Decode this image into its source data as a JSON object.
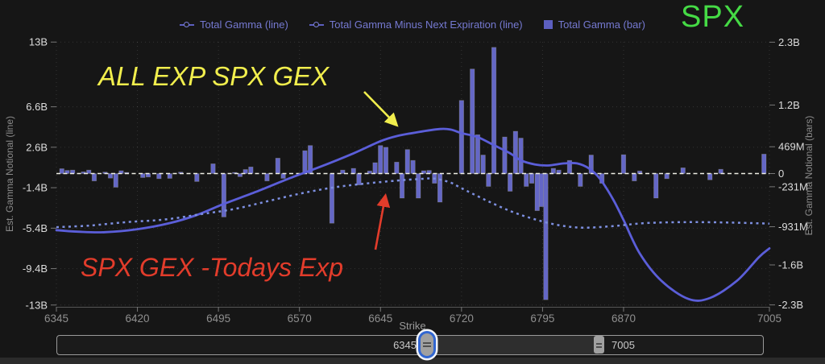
{
  "title": "SPX",
  "legend": [
    {
      "label": "Total Gamma (line)",
      "marker": "line-dot-icon"
    },
    {
      "label": "Total Gamma Minus Next Expiration (line)",
      "marker": "line-dot-icon"
    },
    {
      "label": "Total Gamma (bar)",
      "marker": "square-icon"
    }
  ],
  "annotations": {
    "all_exp": "ALL EXP SPX GEX",
    "todays_exp": "SPX GEX -Todays Exp"
  },
  "slider": {
    "min_label": "6345",
    "max_label": "7005"
  },
  "colors": {
    "background": "#161616",
    "bar_fill": "#6467c6",
    "bar_stroke": "#b0b08c",
    "line_solid": "#5b5ed9",
    "line_dotted": "#7d8fe0",
    "zero_line": "#eeeee4",
    "grid": "#ffffff",
    "title_green": "#45da45",
    "annotation_yellow": "#f1ee4d",
    "annotation_red": "#e23c2b",
    "legend_text": "#7579d1",
    "axis_label": "#dcdcdc",
    "x_label": "#8f8f8f",
    "axis_title": "#8a8a8a"
  },
  "chart_data": {
    "type": "mixed-bar-line",
    "xlabel": "Strike",
    "xlim": [
      6345,
      7005
    ],
    "x_ticks": [
      6345,
      6420,
      6495,
      6570,
      6645,
      6720,
      6795,
      6870,
      7005
    ],
    "left_axis": {
      "title": "Est. Gamma Notional (line)",
      "unit": "B",
      "ylim": [
        -13.2,
        13.0
      ],
      "tick_values_B": [
        13,
        6.6,
        2.6,
        -1.4,
        -5.4,
        -9.4,
        -13
      ],
      "tick_labels": [
        "13B",
        "6.6B",
        "2.6B",
        "-1.4B",
        "-5.4B",
        "-9.4B",
        "-13B"
      ]
    },
    "right_axis": {
      "title": "Est. Gamma Notional (bars)",
      "unit": "M",
      "ylim_M": [
        -2330,
        2300
      ],
      "tick_values_M": [
        2300,
        1200,
        469,
        0,
        -231,
        -931,
        -1600,
        -2300
      ],
      "tick_labels": [
        "2.3B",
        "1.2B",
        "469M",
        "0",
        "-231M",
        "-931M",
        "-1.6B",
        "-2.3B"
      ]
    },
    "bars_M": [
      [
        6350,
        85
      ],
      [
        6355,
        55
      ],
      [
        6360,
        60
      ],
      [
        6370,
        30
      ],
      [
        6375,
        60
      ],
      [
        6380,
        -130
      ],
      [
        6390,
        25
      ],
      [
        6395,
        -80
      ],
      [
        6400,
        -240
      ],
      [
        6405,
        50
      ],
      [
        6410,
        20
      ],
      [
        6425,
        -70
      ],
      [
        6430,
        -60
      ],
      [
        6440,
        -90
      ],
      [
        6450,
        -85
      ],
      [
        6460,
        25
      ],
      [
        6475,
        -140
      ],
      [
        6490,
        170
      ],
      [
        6500,
        -760
      ],
      [
        6510,
        20
      ],
      [
        6515,
        -55
      ],
      [
        6520,
        70
      ],
      [
        6525,
        115
      ],
      [
        6540,
        -130
      ],
      [
        6550,
        270
      ],
      [
        6555,
        -85
      ],
      [
        6575,
        400
      ],
      [
        6580,
        490
      ],
      [
        6600,
        -870
      ],
      [
        6610,
        60
      ],
      [
        6620,
        90
      ],
      [
        6625,
        -200
      ],
      [
        6635,
        45
      ],
      [
        6640,
        190
      ],
      [
        6645,
        490
      ],
      [
        6650,
        460
      ],
      [
        6660,
        200
      ],
      [
        6665,
        -430
      ],
      [
        6670,
        420
      ],
      [
        6675,
        230
      ],
      [
        6680,
        -430
      ],
      [
        6685,
        50
      ],
      [
        6690,
        55
      ],
      [
        6695,
        -170
      ],
      [
        6700,
        -500
      ],
      [
        6720,
        1280
      ],
      [
        6730,
        1830
      ],
      [
        6735,
        680
      ],
      [
        6740,
        325
      ],
      [
        6745,
        -225
      ],
      [
        6750,
        2210
      ],
      [
        6760,
        640
      ],
      [
        6765,
        -310
      ],
      [
        6770,
        740
      ],
      [
        6775,
        620
      ],
      [
        6780,
        -225
      ],
      [
        6785,
        -170
      ],
      [
        6790,
        -650
      ],
      [
        6794,
        -580
      ],
      [
        6798,
        -2210
      ],
      [
        6805,
        90
      ],
      [
        6810,
        60
      ],
      [
        6820,
        230
      ],
      [
        6830,
        -225
      ],
      [
        6840,
        325
      ],
      [
        6850,
        -170
      ],
      [
        6870,
        330
      ],
      [
        6880,
        -130
      ],
      [
        6885,
        45
      ],
      [
        6900,
        -430
      ],
      [
        6910,
        -90
      ],
      [
        6925,
        100
      ],
      [
        6950,
        -110
      ],
      [
        6960,
        75
      ],
      [
        7000,
        340
      ]
    ],
    "series": [
      {
        "name": "Total Gamma (line)",
        "style": "solid",
        "points_B": [
          [
            6345,
            -5.6
          ],
          [
            6365,
            -5.75
          ],
          [
            6390,
            -5.8
          ],
          [
            6420,
            -5.5
          ],
          [
            6450,
            -4.9
          ],
          [
            6475,
            -4.1
          ],
          [
            6500,
            -3.0
          ],
          [
            6530,
            -1.8
          ],
          [
            6560,
            -0.5
          ],
          [
            6590,
            0.7
          ],
          [
            6620,
            2.0
          ],
          [
            6645,
            3.2
          ],
          [
            6660,
            3.7
          ],
          [
            6680,
            4.1
          ],
          [
            6700,
            4.4
          ],
          [
            6710,
            4.35
          ],
          [
            6720,
            4.0
          ],
          [
            6735,
            3.6
          ],
          [
            6750,
            2.8
          ],
          [
            6765,
            2.0
          ],
          [
            6775,
            1.3
          ],
          [
            6788,
            0.9
          ],
          [
            6800,
            0.8
          ],
          [
            6815,
            1.0
          ],
          [
            6827,
            1.0
          ],
          [
            6838,
            0.5
          ],
          [
            6848,
            -0.5
          ],
          [
            6860,
            -2.5
          ],
          [
            6870,
            -4.6
          ],
          [
            6885,
            -7.9
          ],
          [
            6905,
            -10.6
          ],
          [
            6930,
            -12.4
          ],
          [
            6950,
            -12.3
          ],
          [
            6975,
            -10.6
          ],
          [
            6995,
            -8.3
          ],
          [
            7005,
            -7.4
          ]
        ]
      },
      {
        "name": "Total Gamma Minus Next Expiration (line)",
        "style": "dotted",
        "points_B": [
          [
            6345,
            -5.3
          ],
          [
            6375,
            -5.15
          ],
          [
            6410,
            -4.8
          ],
          [
            6445,
            -4.55
          ],
          [
            6480,
            -4.0
          ],
          [
            6510,
            -3.5
          ],
          [
            6540,
            -2.75
          ],
          [
            6570,
            -2.0
          ],
          [
            6600,
            -1.4
          ],
          [
            6630,
            -1.0
          ],
          [
            6660,
            -0.7
          ],
          [
            6680,
            -0.55
          ],
          [
            6695,
            -0.5
          ],
          [
            6710,
            -0.9
          ],
          [
            6720,
            -1.45
          ],
          [
            6742,
            -2.6
          ],
          [
            6765,
            -3.7
          ],
          [
            6787,
            -4.5
          ],
          [
            6810,
            -5.1
          ],
          [
            6832,
            -5.35
          ],
          [
            6860,
            -5.2
          ],
          [
            6890,
            -4.9
          ],
          [
            6930,
            -4.8
          ],
          [
            6970,
            -4.85
          ],
          [
            7005,
            -4.95
          ]
        ]
      }
    ]
  }
}
